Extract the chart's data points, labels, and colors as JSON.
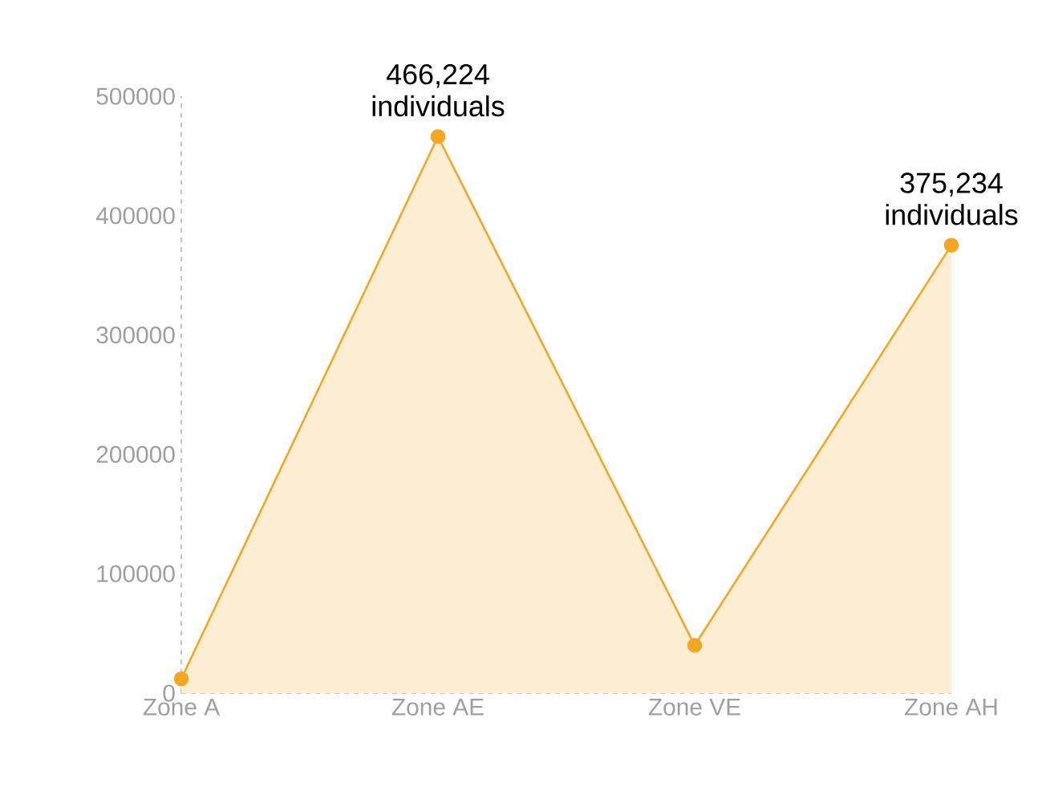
{
  "chart_data": {
    "type": "area",
    "categories": [
      "Zone A",
      "Zone AE",
      "Zone VE",
      "Zone AH"
    ],
    "series": [
      {
        "color": "#f5a623",
        "values": [
          12000,
          466224,
          40000,
          375234
        ]
      }
    ],
    "ylim": [
      0,
      500000
    ],
    "yticks": [
      0,
      100000,
      200000,
      300000,
      400000,
      500000
    ],
    "marker": "circle",
    "line_style": "solid",
    "annotations": [
      {
        "text": "466,224 individuals",
        "x": "Zone AE",
        "y": 466224
      },
      {
        "text": "375,234 individuals",
        "x": "Zone AH",
        "y": 375234
      }
    ]
  }
}
